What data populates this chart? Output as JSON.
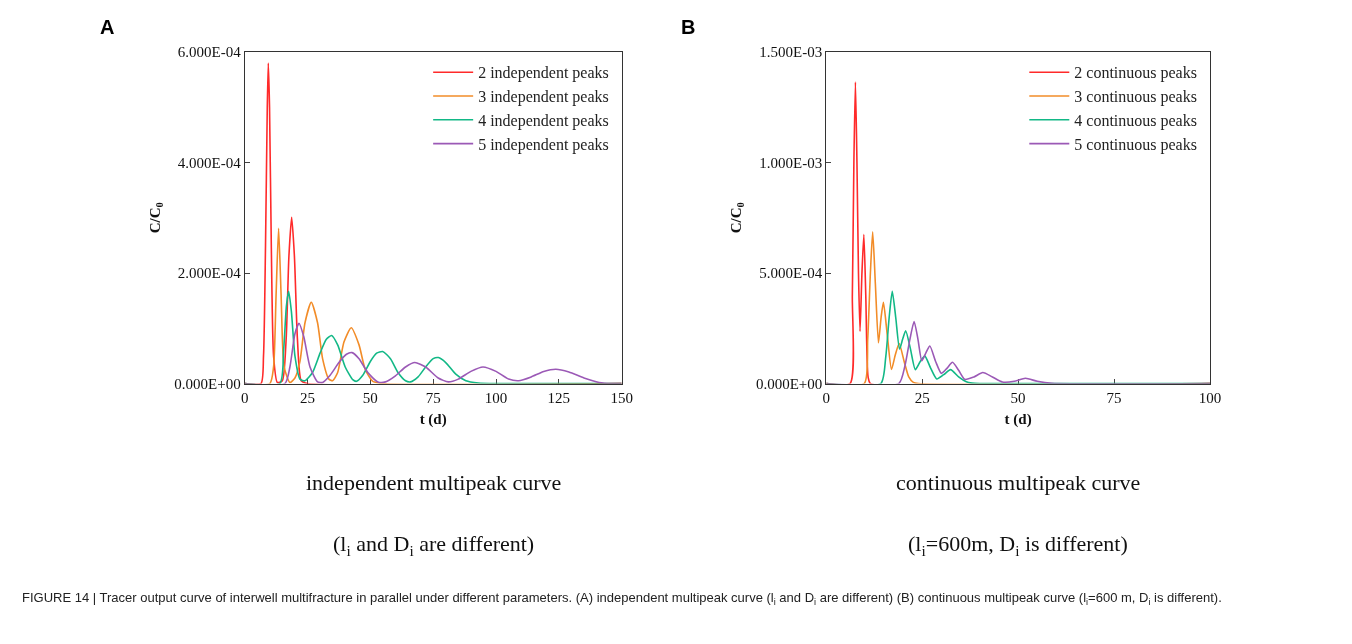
{
  "chart_data": [
    {
      "type": "line",
      "title": "A",
      "xlabel": "t (d)",
      "ylabel": "C/C$_{0}$",
      "legend": "top right",
      "marker": "none",
      "line_style": "solid",
      "xlim": [
        0,
        150
      ],
      "xticks": [
        0,
        25,
        50,
        75,
        100,
        125,
        150
      ],
      "ylim": [
        0,
        0.0006
      ],
      "yticks": [
        {
          "value": 0,
          "label": "0.000E+00"
        },
        {
          "value": 0.0002,
          "label": "2.000E-04"
        },
        {
          "value": 0.0004,
          "label": "4.000E-04"
        },
        {
          "value": 0.0006,
          "label": "6.000E-04"
        }
      ],
      "annotations": [
        "independent multipeak curve",
        "(l$_{i}$ and D$_{i}$ are different)"
      ],
      "series": [
        {
          "name": "2 independent peaks",
          "color": "#ff2a2a",
          "x": [
            0,
            6.5,
            7.5,
            8.3,
            9,
            9.4,
            9.9,
            10.6,
            11.5,
            13,
            15,
            16.5,
            17.6,
            18.7,
            19.8,
            21,
            22.5,
            25,
            150
          ],
          "values": [
            0,
            0,
            5e-05,
            0.00025,
            0.0005,
            0.00058,
            0.0005,
            0.00025,
            5e-05,
            2e-06,
            5e-06,
            8e-05,
            0.00023,
            0.000301,
            0.00023,
            8e-05,
            5e-06,
            0,
            0
          ]
        },
        {
          "name": "3 independent peaks",
          "color": "#f28c28",
          "x": [
            0,
            10,
            11.5,
            12.5,
            13.5,
            14.5,
            15.7,
            18,
            20,
            22,
            24,
            26.5,
            29,
            31,
            33.5,
            35,
            37,
            39.5,
            42.4,
            45.5,
            48,
            51,
            55,
            150
          ],
          "values": [
            0,
            0,
            3e-05,
            0.00016,
            0.000281,
            0.00016,
            3e-05,
            2e-06,
            1e-05,
            4e-05,
            0.00011,
            0.000147,
            0.00011,
            4.5e-05,
            8e-06,
            5e-06,
            2e-05,
            7.5e-05,
            0.000101,
            7e-05,
            2.5e-05,
            4e-06,
            0,
            0
          ]
        },
        {
          "name": "4 independent peaks",
          "color": "#12b886",
          "x": [
            0,
            14,
            15.5,
            16.6,
            17.5,
            18.6,
            20,
            22,
            24,
            27,
            30,
            32.5,
            34.6,
            37,
            40,
            43,
            44.5,
            47,
            50,
            52.5,
            54.9,
            58,
            61,
            64,
            66,
            69,
            72,
            75,
            77.1,
            80,
            84,
            88,
            93,
            100,
            150
          ],
          "values": [
            0,
            0,
            6e-05,
            0.00014,
            0.000167,
            0.00013,
            5e-05,
            8e-06,
            5e-06,
            2e-05,
            5.5e-05,
            8e-05,
            8.7e-05,
            7e-05,
            3e-05,
            7e-06,
            4e-06,
            1.5e-05,
            4e-05,
            5.5e-05,
            5.8e-05,
            4.5e-05,
            2e-05,
            5e-06,
            3e-06,
            1.2e-05,
            3e-05,
            4.5e-05,
            4.7e-05,
            3.8e-05,
            1.7e-05,
            5e-06,
            1e-06,
            0,
            0
          ]
        },
        {
          "name": "5 independent peaks",
          "color": "#9b59b6",
          "x": [
            0,
            16,
            18,
            20,
            21.6,
            23.5,
            26,
            29,
            31,
            34,
            37.5,
            40.5,
            42.7,
            45.5,
            49,
            53,
            56,
            60,
            64,
            67.7,
            72,
            77,
            81,
            85,
            90,
            94.8,
            100,
            105,
            109,
            114,
            119,
            123.8,
            129,
            135,
            141,
            146,
            150
          ],
          "values": [
            0,
            0,
            3e-05,
            9e-05,
            0.000109,
            8.5e-05,
            3e-05,
            3e-06,
            2e-06,
            1.5e-05,
            3.8e-05,
            5.3e-05,
            5.6e-05,
            4.5e-05,
            2e-05,
            3e-06,
            3e-06,
            1.4e-05,
            3e-05,
            3.8e-05,
            3e-05,
            1e-05,
            3e-06,
            8e-06,
            2.2e-05,
            3e-05,
            2.2e-05,
            8e-06,
            5e-06,
            1.2e-05,
            2.2e-05,
            2.6e-05,
            2.1e-05,
            1e-05,
            2e-06,
            0,
            0
          ]
        }
      ]
    },
    {
      "type": "line",
      "title": "B",
      "xlabel": "t (d)",
      "ylabel": "C/C$_{0}$",
      "legend": "top right",
      "marker": "none",
      "line_style": "solid",
      "xlim": [
        0,
        100
      ],
      "xticks": [
        0,
        25,
        50,
        75,
        100
      ],
      "ylim": [
        0,
        0.0015
      ],
      "yticks": [
        {
          "value": 0,
          "label": "0.000E+00"
        },
        {
          "value": 0.0005,
          "label": "5.000E-04"
        },
        {
          "value": 0.001,
          "label": "1.000E-03"
        },
        {
          "value": 0.0015,
          "label": "1.500E-03"
        }
      ],
      "annotations": [
        "continuous multipeak curve",
        "(l$_{i}$=600m, D$_{i}$ is different)",
        "FIGURE 14 | Tracer output curve of interwell multifracture in parallel under different parameters. (A) independent multipeak curve (l$_{i}$ and D$_{i}$ are different) (B) continuous multipeak curve (l$_{i}$=600 m, D$_{i}$ is different)."
      ],
      "series": [
        {
          "name": "2 continuous peaks",
          "color": "#ff2a2a",
          "x": [
            0,
            6.2,
            6.8,
            7.2,
            7.6,
            8.0,
            8.4,
            8.8,
            9.3,
            9.8,
            10.3,
            10.9,
            11.5,
            100
          ],
          "values": [
            0,
            0,
            0.0004,
            0.001,
            0.001364,
            0.001,
            0.0005,
            0.000236,
            0.0005,
            0.000674,
            0.0004,
            3e-05,
            0,
            0
          ]
        },
        {
          "name": "3 continuous peaks",
          "color": "#f28c28",
          "x": [
            0,
            9.9,
            10.8,
            11.5,
            12.1,
            12.8,
            13.6,
            14.3,
            14.9,
            15.9,
            17.0,
            18.0,
            19.0,
            20.3,
            21.5,
            22.7,
            24,
            100
          ],
          "values": [
            0,
            0,
            0.0002,
            0.0005,
            0.000686,
            0.00045,
            0.000184,
            0.0003,
            0.000367,
            0.00022,
            6.4e-05,
            0.00013,
            0.000181,
            0.0001,
            3e-05,
            5e-06,
            0,
            0
          ]
        },
        {
          "name": "4 continuous peaks",
          "color": "#12b886",
          "x": [
            0,
            14.2,
            15.5,
            16.4,
            17.2,
            18.1,
            19.1,
            19.9,
            20.7,
            21.9,
            23.2,
            24.5,
            25.7,
            27.2,
            28.8,
            30.6,
            32.4,
            34.5,
            36.5,
            38,
            40,
            100
          ],
          "values": [
            0,
            0,
            0.00012,
            0.0003,
            0.000417,
            0.0003,
            0.000156,
            0.0002,
            0.000239,
            0.00016,
            6.3e-05,
            0.0001,
            0.000124,
            7e-05,
            2.1e-05,
            4e-05,
            6.3e-05,
            3e-05,
            8e-06,
            2e-06,
            0,
            0
          ]
        },
        {
          "name": "5 continuous peaks",
          "color": "#9b59b6",
          "x": [
            0,
            18.9,
            20.5,
            21.8,
            22.9,
            23.9,
            24.9,
            26.0,
            27.0,
            28.5,
            30.0,
            31.5,
            32.9,
            34.5,
            36.1,
            38.5,
            40.8,
            43.3,
            45.9,
            49,
            51.9,
            55,
            58.8,
            100
          ],
          "values": [
            0,
            0,
            8e-05,
            0.0002,
            0.000281,
            0.0002,
            0.000103,
            0.00014,
            0.00017,
            0.0001,
            4.6e-05,
            7e-05,
            9.6e-05,
            6e-05,
            1.9e-05,
            3e-05,
            5e-05,
            3e-05,
            7e-06,
            1e-05,
            2.4e-05,
            1e-05,
            1e-06,
            0
          ]
        }
      ]
    }
  ]
}
